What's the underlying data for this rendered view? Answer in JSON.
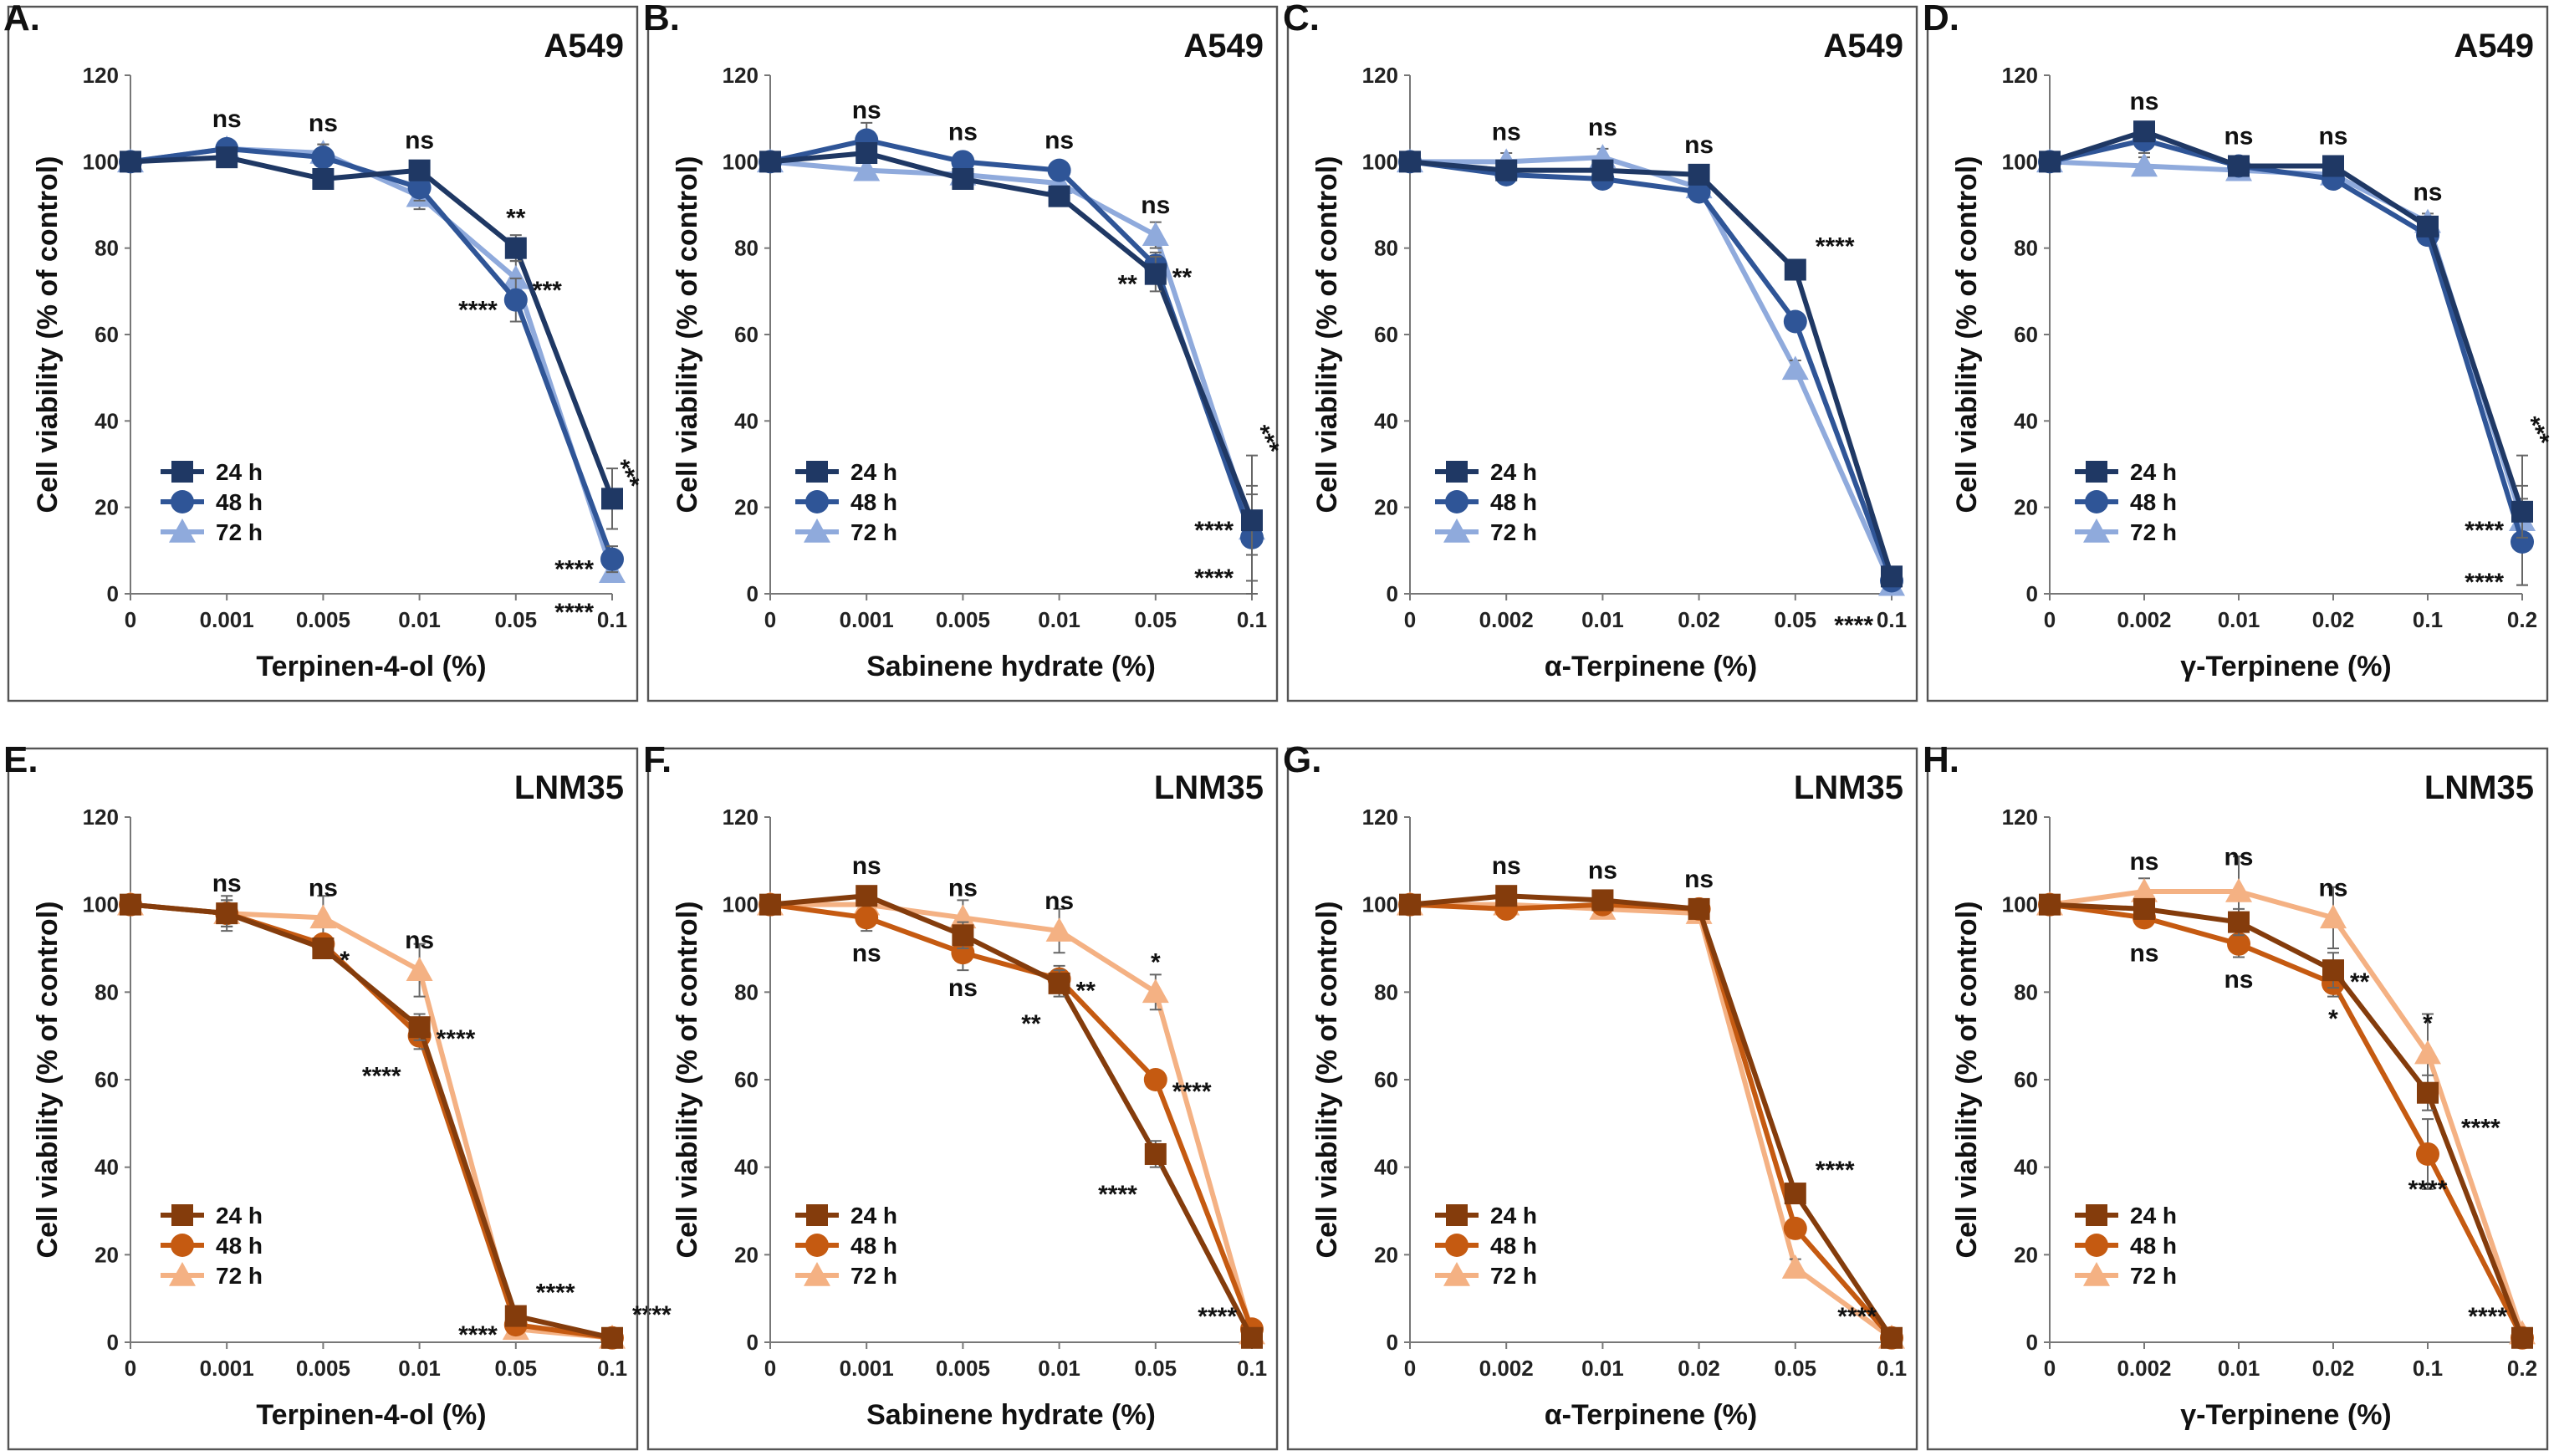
{
  "figure_colors": {
    "A549": [
      "#1f3864",
      "#2f5597",
      "#8faadc"
    ],
    "LNM35": [
      "#843c0c",
      "#c55a11",
      "#f4b183"
    ]
  },
  "marker_shapes": [
    "square",
    "circle",
    "triangle"
  ],
  "chart_data": [
    {
      "id": "A",
      "label": "A.",
      "cell_line": "A549",
      "type": "line",
      "xlabel": "Terpinen-4-ol (%)",
      "ylabel": "Cell viability (% of control)",
      "categories": [
        "0",
        "0.001",
        "0.005",
        "0.01",
        "0.05",
        "0.1"
      ],
      "ylim": [
        0,
        120
      ],
      "yticks": [
        "0",
        "20",
        "40",
        "60",
        "80",
        "100",
        "120"
      ],
      "series": [
        {
          "name": "24 h",
          "values": [
            100,
            101,
            96,
            98,
            80,
            22
          ],
          "errors": [
            1,
            2,
            2,
            2,
            3,
            7
          ]
        },
        {
          "name": "48 h",
          "values": [
            100,
            103,
            101,
            94,
            68,
            8
          ],
          "errors": [
            1,
            2,
            3,
            3,
            5,
            3
          ]
        },
        {
          "name": "72 h",
          "values": [
            100,
            103,
            102,
            92,
            73,
            5
          ],
          "errors": [
            1,
            2,
            2,
            3,
            4,
            2
          ]
        }
      ],
      "annotations": [
        {
          "text": "ns",
          "x": 1,
          "y": 103,
          "pos": "above"
        },
        {
          "text": "ns",
          "x": 2,
          "y": 102,
          "pos": "above"
        },
        {
          "text": "ns",
          "x": 3,
          "y": 98,
          "pos": "above"
        },
        {
          "text": "**",
          "x": 4,
          "y": 80,
          "pos": "above"
        },
        {
          "text": "***",
          "x": 4,
          "y": 73,
          "pos": "right"
        },
        {
          "text": "****",
          "x": 4,
          "y": 68,
          "pos": "left"
        },
        {
          "text": "***",
          "x": 5,
          "y": 22,
          "pos": "vertical"
        },
        {
          "text": "****",
          "x": 5,
          "y": 8,
          "pos": "left"
        },
        {
          "text": "****",
          "x": 5,
          "y": 5,
          "pos": "below-left"
        }
      ]
    },
    {
      "id": "B",
      "label": "B.",
      "cell_line": "A549",
      "type": "line",
      "xlabel": "Sabinene hydrate (%)",
      "ylabel": "Cell viability (% of control)",
      "categories": [
        "0",
        "0.001",
        "0.005",
        "0.01",
        "0.05",
        "0.1"
      ],
      "ylim": [
        0,
        120
      ],
      "yticks": [
        "0",
        "20",
        "40",
        "60",
        "80",
        "100",
        "120"
      ],
      "series": [
        {
          "name": "24 h",
          "values": [
            100,
            102,
            96,
            92,
            74,
            17
          ],
          "errors": [
            1,
            2,
            2,
            2,
            4,
            8
          ]
        },
        {
          "name": "48 h",
          "values": [
            100,
            105,
            100,
            98,
            76,
            13
          ],
          "errors": [
            1,
            4,
            2,
            2,
            3,
            10
          ]
        },
        {
          "name": "72 h",
          "values": [
            100,
            98,
            97,
            95,
            83,
            15
          ],
          "errors": [
            1,
            2,
            2,
            2,
            3,
            17
          ]
        }
      ],
      "annotations": [
        {
          "text": "ns",
          "x": 1,
          "y": 105,
          "pos": "above"
        },
        {
          "text": "ns",
          "x": 2,
          "y": 100,
          "pos": "above"
        },
        {
          "text": "ns",
          "x": 3,
          "y": 98,
          "pos": "above"
        },
        {
          "text": "ns",
          "x": 4,
          "y": 83,
          "pos": "above"
        },
        {
          "text": "**",
          "x": 4,
          "y": 76,
          "pos": "right"
        },
        {
          "text": "**",
          "x": 4,
          "y": 74,
          "pos": "left"
        },
        {
          "text": "***",
          "x": 5,
          "y": 30,
          "pos": "vertical"
        },
        {
          "text": "****",
          "x": 5,
          "y": 17,
          "pos": "left"
        },
        {
          "text": "****",
          "x": 5,
          "y": 13,
          "pos": "below-left"
        }
      ]
    },
    {
      "id": "C",
      "label": "C.",
      "cell_line": "A549",
      "type": "line",
      "xlabel": "α-Terpinene (%)",
      "ylabel": "Cell viability (% of control)",
      "categories": [
        "0",
        "0.002",
        "0.01",
        "0.02",
        "0.05",
        "0.1"
      ],
      "ylim": [
        0,
        120
      ],
      "yticks": [
        "0",
        "20",
        "40",
        "60",
        "80",
        "100",
        "120"
      ],
      "series": [
        {
          "name": "24 h",
          "values": [
            100,
            98,
            98,
            97,
            75,
            4
          ],
          "errors": [
            1,
            2,
            2,
            2,
            2,
            1
          ]
        },
        {
          "name": "48 h",
          "values": [
            100,
            97,
            96,
            93,
            63,
            3
          ],
          "errors": [
            1,
            2,
            2,
            2,
            2,
            1
          ]
        },
        {
          "name": "72 h",
          "values": [
            100,
            100,
            101,
            94,
            52,
            2
          ],
          "errors": [
            1,
            2,
            2,
            2,
            2,
            1
          ]
        }
      ],
      "annotations": [
        {
          "text": "ns",
          "x": 1,
          "y": 100,
          "pos": "above"
        },
        {
          "text": "ns",
          "x": 2,
          "y": 101,
          "pos": "above"
        },
        {
          "text": "ns",
          "x": 3,
          "y": 97,
          "pos": "above"
        },
        {
          "text": "****",
          "x": 4,
          "y": 75,
          "pos": "above-right"
        },
        {
          "text": "****",
          "x": 5,
          "y": 2,
          "pos": "below-left"
        }
      ]
    },
    {
      "id": "D",
      "label": "D.",
      "cell_line": "A549",
      "type": "line",
      "xlabel": "γ-Terpinene (%)",
      "ylabel": "Cell viability (% of control)",
      "categories": [
        "0",
        "0.002",
        "0.01",
        "0.02",
        "0.1",
        "0.2"
      ],
      "ylim": [
        0,
        120
      ],
      "yticks": [
        "0",
        "20",
        "40",
        "60",
        "80",
        "100",
        "120"
      ],
      "series": [
        {
          "name": "24 h",
          "values": [
            100,
            107,
            99,
            99,
            85,
            19
          ],
          "errors": [
            1,
            2,
            2,
            2,
            2,
            6
          ]
        },
        {
          "name": "48 h",
          "values": [
            100,
            105,
            99,
            96,
            83,
            12
          ],
          "errors": [
            1,
            3,
            2,
            2,
            2,
            10
          ]
        },
        {
          "name": "72 h",
          "values": [
            100,
            99,
            98,
            97,
            86,
            17
          ],
          "errors": [
            1,
            2,
            2,
            2,
            2,
            15
          ]
        }
      ],
      "annotations": [
        {
          "text": "ns",
          "x": 1,
          "y": 107,
          "pos": "above"
        },
        {
          "text": "ns",
          "x": 2,
          "y": 99,
          "pos": "above"
        },
        {
          "text": "ns",
          "x": 3,
          "y": 99,
          "pos": "above"
        },
        {
          "text": "ns",
          "x": 4,
          "y": 86,
          "pos": "above"
        },
        {
          "text": "***",
          "x": 5,
          "y": 32,
          "pos": "vertical"
        },
        {
          "text": "****",
          "x": 5,
          "y": 17,
          "pos": "left"
        },
        {
          "text": "****",
          "x": 5,
          "y": 12,
          "pos": "below-left"
        }
      ]
    },
    {
      "id": "E",
      "label": "E.",
      "cell_line": "LNM35",
      "type": "line",
      "xlabel": "Terpinen-4-ol (%)",
      "ylabel": "Cell viability (% of control)",
      "categories": [
        "0",
        "0.001",
        "0.005",
        "0.01",
        "0.05",
        "0.1"
      ],
      "ylim": [
        0,
        120
      ],
      "yticks": [
        "0",
        "20",
        "40",
        "60",
        "80",
        "100",
        "120"
      ],
      "series": [
        {
          "name": "24 h",
          "values": [
            100,
            98,
            90,
            72,
            6,
            1
          ],
          "errors": [
            1,
            4,
            2,
            3,
            1,
            1
          ]
        },
        {
          "name": "48 h",
          "values": [
            100,
            98,
            91,
            70,
            4,
            1
          ],
          "errors": [
            1,
            3,
            2,
            3,
            1,
            1
          ]
        },
        {
          "name": "72 h",
          "values": [
            100,
            98,
            97,
            85,
            3,
            1
          ],
          "errors": [
            1,
            3,
            5,
            6,
            1,
            1
          ]
        }
      ],
      "annotations": [
        {
          "text": "ns",
          "x": 1,
          "y": 98,
          "pos": "above"
        },
        {
          "text": "ns",
          "x": 2,
          "y": 97,
          "pos": "above"
        },
        {
          "text": "ns",
          "x": 3,
          "y": 85,
          "pos": "above"
        },
        {
          "text": "*",
          "x": 2,
          "y": 90,
          "pos": "right"
        },
        {
          "text": "****",
          "x": 3,
          "y": 72,
          "pos": "right"
        },
        {
          "text": "****",
          "x": 3,
          "y": 70,
          "pos": "below-left"
        },
        {
          "text": "****",
          "x": 4,
          "y": 6,
          "pos": "above-right"
        },
        {
          "text": "****",
          "x": 4,
          "y": 4,
          "pos": "left"
        },
        {
          "text": "****",
          "x": 5,
          "y": 1,
          "pos": "above-right"
        }
      ]
    },
    {
      "id": "F",
      "label": "F.",
      "cell_line": "LNM35",
      "type": "line",
      "xlabel": "Sabinene hydrate (%)",
      "ylabel": "Cell viability (% of control)",
      "categories": [
        "0",
        "0.001",
        "0.005",
        "0.01",
        "0.05",
        "0.1"
      ],
      "ylim": [
        0,
        120
      ],
      "yticks": [
        "0",
        "20",
        "40",
        "60",
        "80",
        "100",
        "120"
      ],
      "series": [
        {
          "name": "24 h",
          "values": [
            100,
            102,
            93,
            82,
            43,
            1
          ],
          "errors": [
            1,
            2,
            3,
            3,
            3,
            1
          ]
        },
        {
          "name": "48 h",
          "values": [
            100,
            97,
            89,
            83,
            60,
            3
          ],
          "errors": [
            1,
            3,
            4,
            3,
            2,
            1
          ]
        },
        {
          "name": "72 h",
          "values": [
            100,
            100,
            97,
            94,
            80,
            2
          ],
          "errors": [
            1,
            2,
            4,
            5,
            4,
            1
          ]
        }
      ],
      "annotations": [
        {
          "text": "ns",
          "x": 1,
          "y": 102,
          "pos": "above"
        },
        {
          "text": "ns",
          "x": 1,
          "y": 97,
          "pos": "below"
        },
        {
          "text": "ns",
          "x": 2,
          "y": 97,
          "pos": "above"
        },
        {
          "text": "ns",
          "x": 2,
          "y": 89,
          "pos": "below"
        },
        {
          "text": "ns",
          "x": 3,
          "y": 94,
          "pos": "above"
        },
        {
          "text": "**",
          "x": 3,
          "y": 83,
          "pos": "right"
        },
        {
          "text": "**",
          "x": 3,
          "y": 82,
          "pos": "below-left"
        },
        {
          "text": "*",
          "x": 4,
          "y": 80,
          "pos": "above"
        },
        {
          "text": "****",
          "x": 4,
          "y": 60,
          "pos": "right"
        },
        {
          "text": "****",
          "x": 4,
          "y": 43,
          "pos": "below-left"
        },
        {
          "text": "****",
          "x": 5,
          "y": 1,
          "pos": "above-left"
        }
      ]
    },
    {
      "id": "G",
      "label": "G.",
      "cell_line": "LNM35",
      "type": "line",
      "xlabel": "α-Terpinene (%)",
      "ylabel": "Cell viability (% of control)",
      "categories": [
        "0",
        "0.002",
        "0.01",
        "0.02",
        "0.05",
        "0.1"
      ],
      "ylim": [
        0,
        120
      ],
      "yticks": [
        "0",
        "20",
        "40",
        "60",
        "80",
        "100",
        "120"
      ],
      "series": [
        {
          "name": "24 h",
          "values": [
            100,
            102,
            101,
            99,
            34,
            1
          ],
          "errors": [
            1,
            2,
            2,
            2,
            2,
            1
          ]
        },
        {
          "name": "48 h",
          "values": [
            100,
            99,
            100,
            99,
            26,
            1
          ],
          "errors": [
            1,
            2,
            2,
            2,
            2,
            1
          ]
        },
        {
          "name": "72 h",
          "values": [
            100,
            100,
            99,
            98,
            17,
            1
          ],
          "errors": [
            1,
            2,
            2,
            2,
            2,
            1
          ]
        }
      ],
      "annotations": [
        {
          "text": "ns",
          "x": 1,
          "y": 102,
          "pos": "above"
        },
        {
          "text": "ns",
          "x": 2,
          "y": 101,
          "pos": "above"
        },
        {
          "text": "ns",
          "x": 3,
          "y": 99,
          "pos": "above"
        },
        {
          "text": "****",
          "x": 4,
          "y": 34,
          "pos": "above-right"
        },
        {
          "text": "****",
          "x": 5,
          "y": 1,
          "pos": "above-left"
        }
      ]
    },
    {
      "id": "H",
      "label": "H.",
      "cell_line": "LNM35",
      "type": "line",
      "xlabel": "γ-Terpinene (%)",
      "ylabel": "Cell viability (% of control)",
      "categories": [
        "0",
        "0.002",
        "0.01",
        "0.02",
        "0.1",
        "0.2"
      ],
      "ylim": [
        0,
        120
      ],
      "yticks": [
        "0",
        "20",
        "40",
        "60",
        "80",
        "100",
        "120"
      ],
      "series": [
        {
          "name": "24 h",
          "values": [
            100,
            99,
            96,
            85,
            57,
            1
          ],
          "errors": [
            1,
            2,
            3,
            4,
            4,
            1
          ]
        },
        {
          "name": "48 h",
          "values": [
            100,
            97,
            91,
            82,
            43,
            1
          ],
          "errors": [
            1,
            2,
            3,
            3,
            8,
            1
          ]
        },
        {
          "name": "72 h",
          "values": [
            100,
            103,
            103,
            97,
            66,
            2
          ],
          "errors": [
            1,
            3,
            8,
            7,
            9,
            1
          ]
        }
      ],
      "annotations": [
        {
          "text": "ns",
          "x": 1,
          "y": 103,
          "pos": "above"
        },
        {
          "text": "ns",
          "x": 1,
          "y": 97,
          "pos": "below"
        },
        {
          "text": "ns",
          "x": 2,
          "y": 104,
          "pos": "above"
        },
        {
          "text": "ns",
          "x": 2,
          "y": 91,
          "pos": "below"
        },
        {
          "text": "ns",
          "x": 3,
          "y": 97,
          "pos": "above"
        },
        {
          "text": "**",
          "x": 3,
          "y": 85,
          "pos": "right"
        },
        {
          "text": "*",
          "x": 3,
          "y": 82,
          "pos": "below"
        },
        {
          "text": "*",
          "x": 4,
          "y": 66,
          "pos": "above"
        },
        {
          "text": "****",
          "x": 4,
          "y": 57,
          "pos": "right-low"
        },
        {
          "text": "****",
          "x": 4,
          "y": 43,
          "pos": "below"
        },
        {
          "text": "****",
          "x": 5,
          "y": 1,
          "pos": "above-left"
        }
      ]
    }
  ]
}
